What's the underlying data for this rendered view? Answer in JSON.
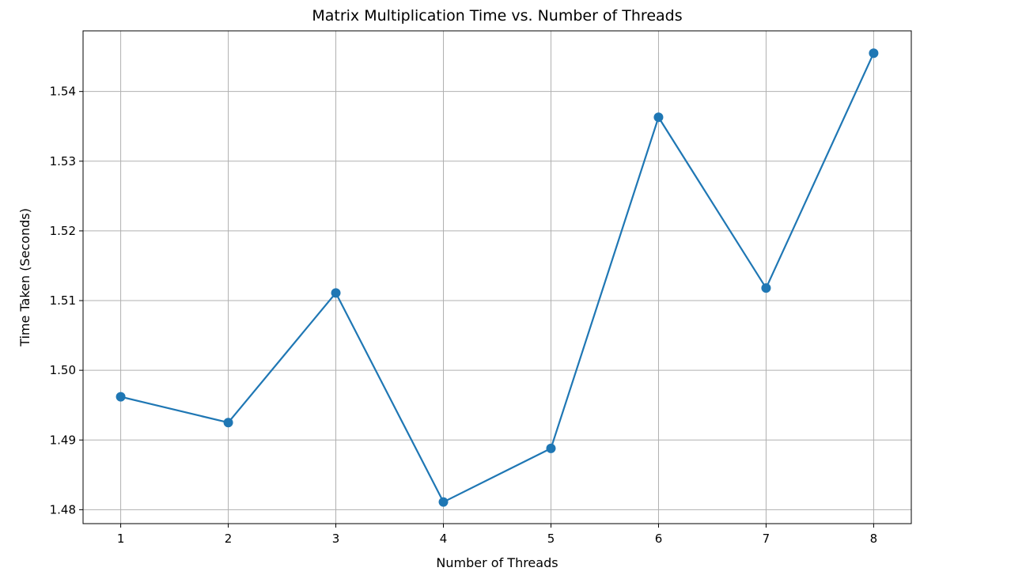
{
  "chart_data": {
    "type": "line",
    "title": "Matrix Multiplication Time vs. Number of Threads",
    "xlabel": "Number of Threads",
    "ylabel": "Time Taken (Seconds)",
    "x": [
      1,
      2,
      3,
      4,
      5,
      6,
      7,
      8
    ],
    "series": [
      {
        "values": [
          1.4962,
          1.4925,
          1.5111,
          1.4811,
          1.4888,
          1.5363,
          1.5118,
          1.5455
        ]
      }
    ],
    "x_ticks": [
      "1",
      "2",
      "3",
      "4",
      "5",
      "6",
      "7",
      "8"
    ],
    "y_ticks": [
      "1.48",
      "1.49",
      "1.50",
      "1.51",
      "1.52",
      "1.53",
      "1.54"
    ],
    "xlim": [
      0.65,
      8.35
    ],
    "ylim": [
      1.478,
      1.5487
    ],
    "grid": true,
    "marker": "circle",
    "colors": {
      "line": "#1f77b4"
    }
  }
}
